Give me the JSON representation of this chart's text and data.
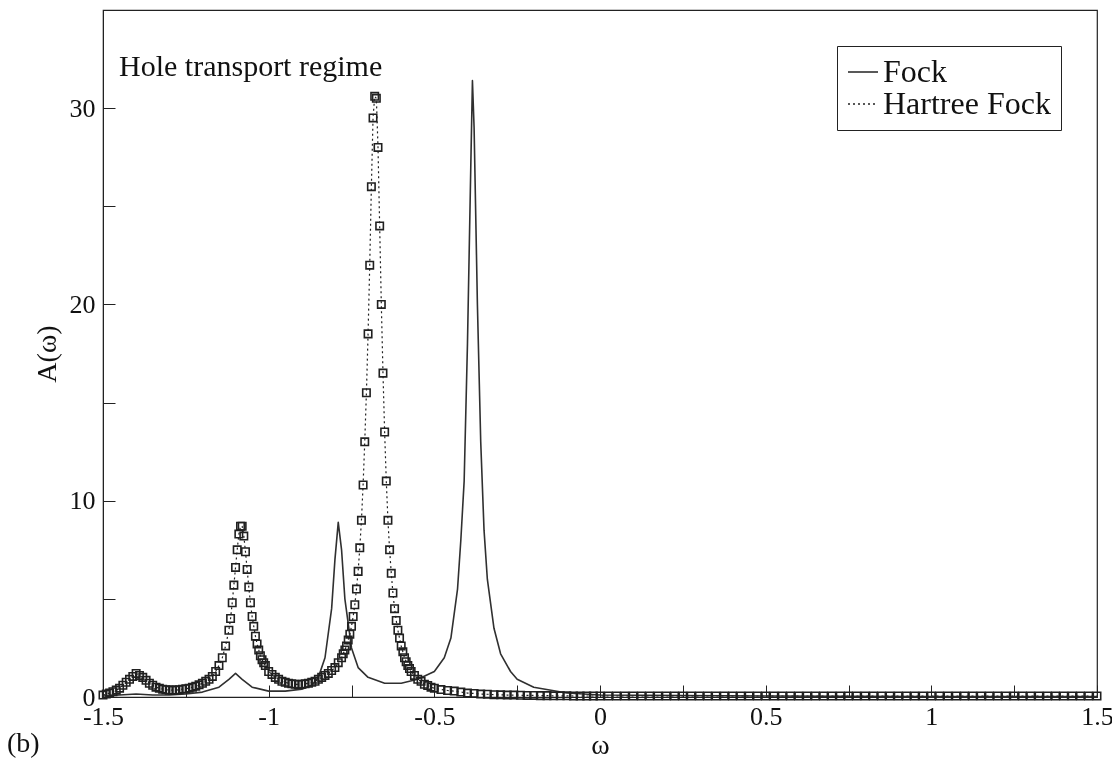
{
  "chart_data": {
    "type": "line",
    "title": "Hole transport regime",
    "xlabel": "ω",
    "ylabel": "A(ω)",
    "annotations": [
      "(b)"
    ],
    "xlim": [
      -1.5,
      1.5
    ],
    "ylim": [
      0,
      35
    ],
    "xticks": [
      {
        "value": -1.5,
        "label": "-1.5"
      },
      {
        "value": -1.25,
        "label": null
      },
      {
        "value": -1,
        "label": "-1"
      },
      {
        "value": -0.75,
        "label": null
      },
      {
        "value": -0.5,
        "label": "-0.5"
      },
      {
        "value": -0.25,
        "label": null
      },
      {
        "value": 0,
        "label": "0"
      },
      {
        "value": 0.25,
        "label": null
      },
      {
        "value": 0.5,
        "label": "0.5"
      },
      {
        "value": 0.75,
        "label": null
      },
      {
        "value": 1,
        "label": "1"
      },
      {
        "value": 1.25,
        "label": null
      },
      {
        "value": 1.5,
        "label": "1.5"
      }
    ],
    "yticks": [
      0,
      {
        "value": 5,
        "label": null
      },
      10,
      {
        "value": 15,
        "label": null
      },
      20,
      {
        "value": 25,
        "label": null
      },
      30
    ],
    "grid": false,
    "legend": "top right",
    "series": [
      {
        "name": "Fock",
        "color": "#303030",
        "line_style": "solid",
        "x": [
          -1.5,
          -1.45,
          -1.4,
          -1.35,
          -1.3,
          -1.25,
          -1.2,
          -1.15,
          -1.12,
          -1.1,
          -1.08,
          -1.05,
          -1.0,
          -0.95,
          -0.9,
          -0.87,
          -0.85,
          -0.83,
          -0.81,
          -0.8,
          -0.79,
          -0.78,
          -0.77,
          -0.75,
          -0.73,
          -0.7,
          -0.65,
          -0.6,
          -0.55,
          -0.5,
          -0.47,
          -0.45,
          -0.43,
          -0.42,
          -0.41,
          -0.4,
          -0.39,
          -0.385,
          -0.38,
          -0.37,
          -0.36,
          -0.35,
          -0.34,
          -0.32,
          -0.3,
          -0.27,
          -0.25,
          -0.2,
          -0.1,
          0,
          0.5,
          1,
          1.5
        ],
        "values": [
          0.05,
          0.1,
          0.15,
          0.1,
          0.1,
          0.15,
          0.25,
          0.5,
          0.9,
          1.2,
          0.9,
          0.5,
          0.3,
          0.3,
          0.4,
          0.6,
          1.0,
          2.0,
          4.5,
          7.0,
          8.9,
          7.5,
          5.0,
          2.5,
          1.5,
          1.0,
          0.7,
          0.7,
          0.9,
          1.3,
          2.0,
          3.0,
          5.5,
          8,
          11,
          18,
          27,
          31.4,
          29,
          20,
          13,
          8.5,
          6,
          3.5,
          2.2,
          1.3,
          0.9,
          0.5,
          0.2,
          0.1,
          0.05,
          0.02,
          0.02
        ]
      },
      {
        "name": "Hartree Fock",
        "color": "#202020",
        "line_style": "dotted",
        "marker": "square",
        "x": [
          -1.5,
          -1.49,
          -1.48,
          -1.47,
          -1.46,
          -1.45,
          -1.44,
          -1.43,
          -1.42,
          -1.41,
          -1.4,
          -1.39,
          -1.38,
          -1.37,
          -1.36,
          -1.35,
          -1.34,
          -1.33,
          -1.32,
          -1.31,
          -1.3,
          -1.29,
          -1.28,
          -1.27,
          -1.26,
          -1.25,
          -1.24,
          -1.23,
          -1.22,
          -1.21,
          -1.2,
          -1.19,
          -1.18,
          -1.17,
          -1.16,
          -1.15,
          -1.14,
          -1.13,
          -1.12,
          -1.115,
          -1.11,
          -1.105,
          -1.1,
          -1.095,
          -1.09,
          -1.085,
          -1.08,
          -1.075,
          -1.07,
          -1.065,
          -1.06,
          -1.055,
          -1.05,
          -1.045,
          -1.04,
          -1.035,
          -1.03,
          -1.025,
          -1.02,
          -1.015,
          -1.01,
          -1.0,
          -0.99,
          -0.98,
          -0.97,
          -0.96,
          -0.95,
          -0.94,
          -0.93,
          -0.92,
          -0.91,
          -0.9,
          -0.89,
          -0.88,
          -0.87,
          -0.86,
          -0.85,
          -0.84,
          -0.83,
          -0.82,
          -0.81,
          -0.8,
          -0.79,
          -0.78,
          -0.775,
          -0.77,
          -0.765,
          -0.76,
          -0.755,
          -0.75,
          -0.745,
          -0.74,
          -0.735,
          -0.73,
          -0.725,
          -0.72,
          -0.715,
          -0.71,
          -0.705,
          -0.7,
          -0.695,
          -0.69,
          -0.685,
          -0.68,
          -0.675,
          -0.67,
          -0.665,
          -0.66,
          -0.655,
          -0.65,
          -0.645,
          -0.64,
          -0.635,
          -0.63,
          -0.625,
          -0.62,
          -0.615,
          -0.61,
          -0.605,
          -0.6,
          -0.595,
          -0.59,
          -0.585,
          -0.58,
          -0.575,
          -0.57,
          -0.56,
          -0.55,
          -0.54,
          -0.53,
          -0.52,
          -0.51,
          -0.5,
          -0.48,
          -0.46,
          -0.44,
          -0.42,
          -0.4,
          -0.38,
          -0.36,
          -0.34,
          -0.32,
          -0.3,
          -0.28,
          -0.26,
          -0.24,
          -0.22,
          -0.2,
          -0.18,
          -0.16,
          -0.14,
          -0.12,
          -0.1,
          -0.08,
          -0.06,
          -0.04,
          -0.02,
          0,
          0.025,
          0.05,
          0.075,
          0.1,
          0.125,
          0.15,
          0.175,
          0.2,
          0.225,
          0.25,
          0.275,
          0.3,
          0.325,
          0.35,
          0.375,
          0.4,
          0.425,
          0.45,
          0.475,
          0.5,
          0.525,
          0.55,
          0.575,
          0.6,
          0.625,
          0.65,
          0.675,
          0.7,
          0.725,
          0.75,
          0.775,
          0.8,
          0.825,
          0.85,
          0.875,
          0.9,
          0.925,
          0.95,
          0.975,
          1.0,
          1.025,
          1.05,
          1.075,
          1.1,
          1.125,
          1.15,
          1.175,
          1.2,
          1.225,
          1.25,
          1.275,
          1.3,
          1.325,
          1.35,
          1.375,
          1.4,
          1.425,
          1.45,
          1.475,
          1.5
        ],
        "values": [
          0.1,
          0.15,
          0.2,
          0.27,
          0.35,
          0.45,
          0.6,
          0.75,
          0.9,
          1.05,
          1.2,
          1.1,
          1.0,
          0.85,
          0.7,
          0.6,
          0.5,
          0.45,
          0.4,
          0.37,
          0.35,
          0.35,
          0.35,
          0.37,
          0.4,
          0.42,
          0.45,
          0.5,
          0.55,
          0.62,
          0.7,
          0.8,
          0.9,
          1.05,
          1.3,
          1.6,
          2.0,
          2.6,
          3.4,
          4.0,
          4.8,
          5.7,
          6.6,
          7.5,
          8.3,
          8.7,
          8.7,
          8.2,
          7.4,
          6.5,
          5.6,
          4.8,
          4.1,
          3.6,
          3.1,
          2.7,
          2.4,
          2.1,
          1.9,
          1.75,
          1.6,
          1.3,
          1.15,
          1.0,
          0.9,
          0.8,
          0.75,
          0.7,
          0.67,
          0.65,
          0.64,
          0.65,
          0.67,
          0.7,
          0.75,
          0.8,
          0.9,
          1.0,
          1.1,
          1.2,
          1.35,
          1.5,
          1.75,
          2.0,
          2.2,
          2.4,
          2.6,
          2.9,
          3.2,
          3.6,
          4.1,
          4.7,
          5.5,
          6.4,
          7.6,
          9.0,
          10.8,
          13.0,
          15.5,
          18.5,
          22,
          26,
          29.5,
          30.6,
          30.5,
          28,
          24,
          20,
          16.5,
          13.5,
          11,
          9,
          7.5,
          6.3,
          5.3,
          4.5,
          3.9,
          3.4,
          3.0,
          2.6,
          2.3,
          2.0,
          1.8,
          1.6,
          1.45,
          1.3,
          1.1,
          0.9,
          0.8,
          0.65,
          0.58,
          0.5,
          0.45,
          0.38,
          0.33,
          0.3,
          0.25,
          0.2,
          0.18,
          0.15,
          0.14,
          0.12,
          0.11,
          0.1,
          0.1,
          0.09,
          0.08,
          0.08,
          0.07,
          0.07,
          0.06,
          0.06,
          0.06,
          0.05,
          0.05,
          0.05,
          0.05,
          0.05,
          0.05,
          0.05,
          0.05,
          0.05,
          0.05,
          0.05,
          0.05,
          0.05,
          0.05,
          0.05,
          0.05,
          0.05,
          0.05,
          0.05,
          0.05,
          0.05,
          0.05,
          0.05,
          0.05,
          0.05,
          0.05,
          0.05,
          0.05,
          0.05,
          0.05,
          0.05,
          0.05,
          0.05,
          0.05,
          0.05,
          0.05,
          0.05,
          0.05,
          0.05,
          0.05,
          0.05,
          0.05,
          0.05,
          0.05,
          0.05,
          0.05,
          0.05,
          0.05,
          0.05,
          0.05,
          0.05,
          0.05,
          0.05,
          0.05,
          0.05,
          0.05,
          0.05,
          0.05,
          0.05,
          0.05,
          0.05,
          0.05,
          0.05,
          0.05,
          0.05
        ]
      }
    ]
  }
}
